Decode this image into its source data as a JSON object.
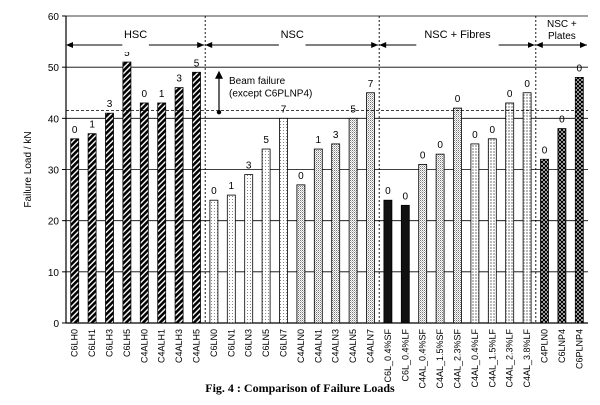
{
  "caption": "Fig. 4 : Comparison of Failure Loads",
  "chart_data": {
    "type": "bar",
    "ylabel": "Failure Load / kN",
    "xlabel": "",
    "ylim": [
      0,
      60
    ],
    "yticks": [
      0,
      10,
      20,
      30,
      40,
      50,
      60
    ],
    "grid": "horizontal",
    "categories": [
      "C6LH0",
      "C6LH1",
      "C6LH3",
      "C6LH5",
      "C4ALH0",
      "C4ALH1",
      "C4ALH3",
      "C4ALH5",
      "C6LN0",
      "C6LN1",
      "C6LN3",
      "C6LN5",
      "C6LN7",
      "C4ALN0",
      "C4ALN1",
      "C4ALN3",
      "C4ALN5",
      "C4ALN7",
      "C6L_0.4%SF",
      "C6L_0.4%LF",
      "C4AL_0.4%SF",
      "C4AL_1.5%SF",
      "C4AL_2.3%SF",
      "C4AL_0.4%LF",
      "C4AL_1.5%LF",
      "C4AL_2.3%LF",
      "C4AL_3.8%LF",
      "C4PLN0",
      "C6LNP4",
      "C6PLNP4"
    ],
    "values": [
      36,
      37,
      41,
      51,
      43,
      43,
      46,
      49,
      24,
      25,
      29,
      34,
      40,
      27,
      34,
      35,
      40,
      45,
      24,
      23,
      31,
      33,
      42,
      35,
      36,
      43,
      45,
      32,
      38,
      48
    ],
    "data_labels": [
      "0",
      "1",
      "3",
      "5",
      "0",
      "1",
      "3",
      "5",
      "0",
      "1",
      "3",
      "5",
      "7",
      "0",
      "1",
      "3",
      "5",
      "7",
      "0",
      "0",
      "0",
      "0",
      "0",
      "0",
      "0",
      "0",
      "0",
      "0",
      "0",
      "0"
    ],
    "patterns": [
      "hatch-dark",
      "hatch-dark",
      "hatch-dark",
      "hatch-dark",
      "hatch-dark",
      "hatch-dark",
      "hatch-dark",
      "hatch-dark",
      "dots-light",
      "dots-light",
      "dots-light",
      "dots-light",
      "dots-light",
      "dots-med",
      "dots-med",
      "dots-med",
      "dots-med",
      "dots-med",
      "solid-black",
      "solid-black",
      "dots-med",
      "dots-med",
      "dots-med",
      "grid-light",
      "grid-light",
      "grid-light",
      "grid-light",
      "cross-dark",
      "cross-dark",
      "cross-dark"
    ],
    "groups": [
      {
        "label": "HSC",
        "from": 0,
        "to": 7
      },
      {
        "label": "NSC",
        "from": 8,
        "to": 17
      },
      {
        "label": "NSC + Fibres",
        "from": 18,
        "to": 26
      },
      {
        "label": "NSC +\nPlates",
        "from": 27,
        "to": 29
      }
    ],
    "reference_line": {
      "value": 41.5,
      "style": "dashed"
    },
    "annotation": {
      "text_line1": "Beam failure",
      "text_line2": "(except C6PLNP4)"
    }
  }
}
